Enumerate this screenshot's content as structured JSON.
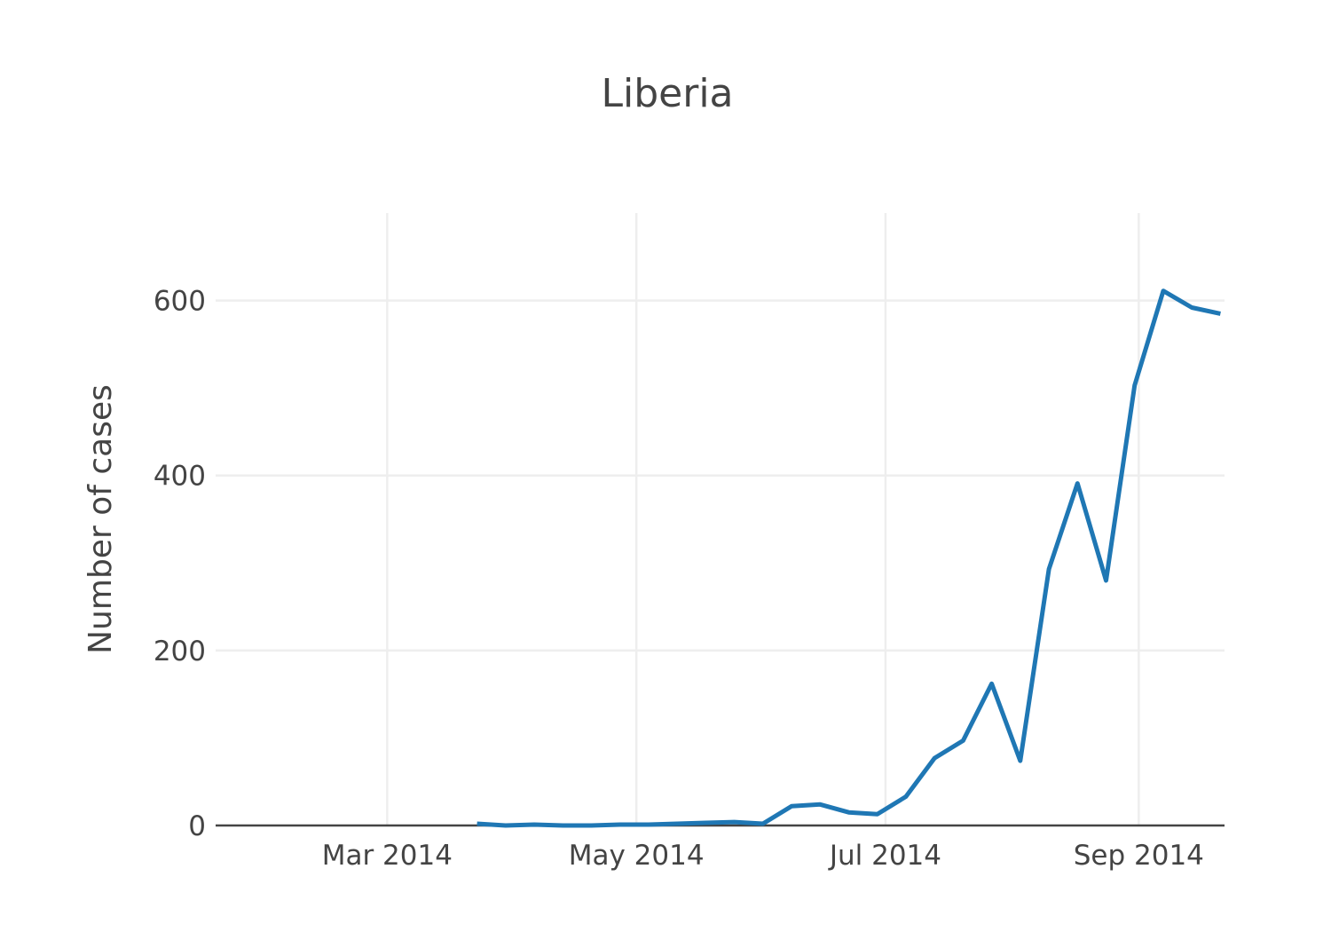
{
  "chart_data": {
    "type": "line",
    "title": "Liberia",
    "xlabel": "",
    "ylabel": "Number of cases",
    "x_ticks": [
      {
        "date": "2014-03-01",
        "label": "Mar 2014"
      },
      {
        "date": "2014-05-01",
        "label": "May 2014"
      },
      {
        "date": "2014-07-01",
        "label": "Jul 2014"
      },
      {
        "date": "2014-09-01",
        "label": "Sep 2014"
      }
    ],
    "xlim": [
      "2014-01-18",
      "2014-09-22"
    ],
    "y_ticks": [
      0,
      200,
      400,
      600
    ],
    "ylim": [
      0,
      700
    ],
    "grid": true,
    "series": [
      {
        "color": "#1f77b4",
        "x": [
          "2014-03-23",
          "2014-03-30",
          "2014-04-06",
          "2014-04-13",
          "2014-04-20",
          "2014-04-27",
          "2014-05-04",
          "2014-05-11",
          "2014-05-18",
          "2014-05-25",
          "2014-06-01",
          "2014-06-08",
          "2014-06-15",
          "2014-06-22",
          "2014-06-29",
          "2014-07-06",
          "2014-07-13",
          "2014-07-20",
          "2014-07-27",
          "2014-08-03",
          "2014-08-10",
          "2014-08-17",
          "2014-08-24",
          "2014-08-31",
          "2014-09-07",
          "2014-09-14",
          "2014-09-21"
        ],
        "values": [
          2,
          0,
          1,
          0,
          0,
          1,
          1,
          2,
          3,
          4,
          2,
          22,
          24,
          15,
          13,
          33,
          77,
          97,
          162,
          74,
          293,
          391,
          280,
          503,
          611,
          592,
          585
        ]
      }
    ]
  }
}
